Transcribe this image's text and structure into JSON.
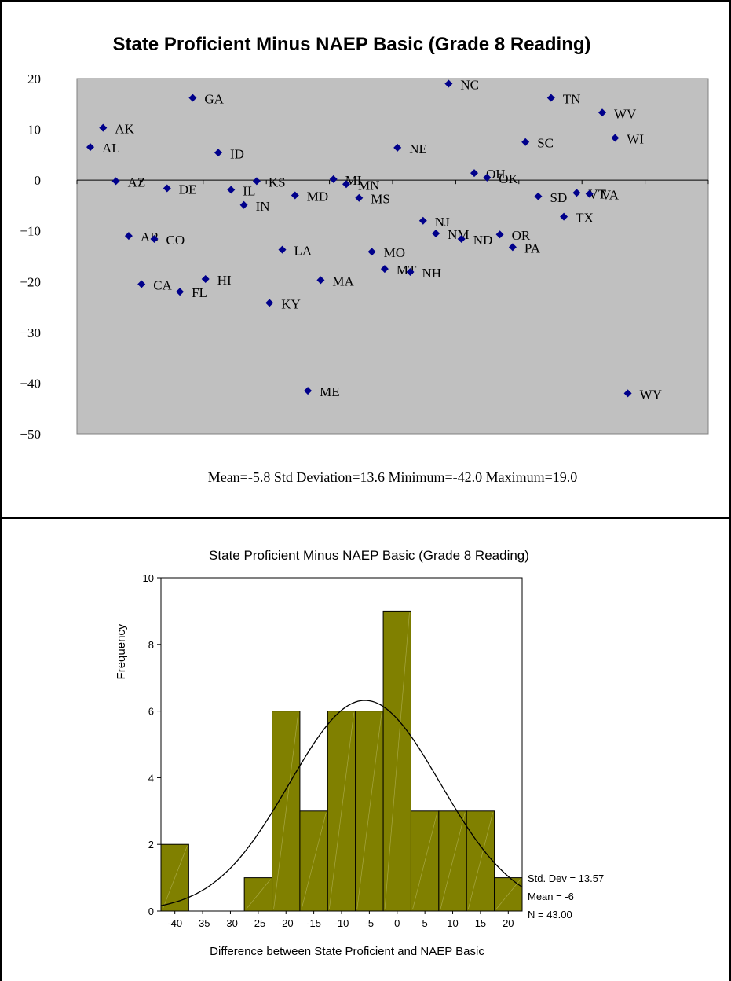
{
  "chart_data": [
    {
      "type": "scatter",
      "title": "State Proficient Minus NAEP Basic (Grade 8 Reading)",
      "ylim": [
        -50,
        20
      ],
      "yticks": [
        20,
        10,
        0,
        -10,
        -20,
        -30,
        -40,
        -50
      ],
      "grid": false,
      "marker_color": "#00008B",
      "plot_background": "#C0C0C0",
      "summary": "Mean=-5.8 Std Deviation=13.6 Minimum=-42.0 Maximum=19.0",
      "points": [
        {
          "label": "AL",
          "x": 1,
          "y": 6.5
        },
        {
          "label": "AK",
          "x": 2,
          "y": 10.3
        },
        {
          "label": "AZ",
          "x": 3,
          "y": -0.2
        },
        {
          "label": "AR",
          "x": 4,
          "y": -11
        },
        {
          "label": "CA",
          "x": 5,
          "y": -20.5
        },
        {
          "label": "CO",
          "x": 6,
          "y": -11.6
        },
        {
          "label": "DE",
          "x": 7,
          "y": -1.6
        },
        {
          "label": "FL",
          "x": 8,
          "y": -22
        },
        {
          "label": "GA",
          "x": 9,
          "y": 16.2
        },
        {
          "label": "HI",
          "x": 10,
          "y": -19.5
        },
        {
          "label": "ID",
          "x": 11,
          "y": 5.4
        },
        {
          "label": "IL",
          "x": 12,
          "y": -1.9
        },
        {
          "label": "IN",
          "x": 13,
          "y": -4.9
        },
        {
          "label": "KS",
          "x": 14,
          "y": -0.2
        },
        {
          "label": "KY",
          "x": 15,
          "y": -24.2
        },
        {
          "label": "LA",
          "x": 16,
          "y": -13.7
        },
        {
          "label": "MD",
          "x": 17,
          "y": -3
        },
        {
          "label": "ME",
          "x": 18,
          "y": -41.5
        },
        {
          "label": "MA",
          "x": 19,
          "y": -19.7
        },
        {
          "label": "MI",
          "x": 20,
          "y": 0.2
        },
        {
          "label": "MN",
          "x": 21,
          "y": -0.8
        },
        {
          "label": "MS",
          "x": 22,
          "y": -3.5
        },
        {
          "label": "MO",
          "x": 23,
          "y": -14.1
        },
        {
          "label": "MT",
          "x": 24,
          "y": -17.5
        },
        {
          "label": "NE",
          "x": 25,
          "y": 6.4
        },
        {
          "label": "NH",
          "x": 26,
          "y": -18.1
        },
        {
          "label": "NJ",
          "x": 27,
          "y": -8
        },
        {
          "label": "NM",
          "x": 28,
          "y": -10.5
        },
        {
          "label": "NC",
          "x": 29,
          "y": 19
        },
        {
          "label": "ND",
          "x": 30,
          "y": -11.6
        },
        {
          "label": "OH",
          "x": 31,
          "y": 1.4
        },
        {
          "label": "OK",
          "x": 32,
          "y": 0.5
        },
        {
          "label": "OR",
          "x": 33,
          "y": -10.7
        },
        {
          "label": "PA",
          "x": 34,
          "y": -13.2
        },
        {
          "label": "SC",
          "x": 35,
          "y": 7.5
        },
        {
          "label": "SD",
          "x": 36,
          "y": -3.2
        },
        {
          "label": "TN",
          "x": 37,
          "y": 16.2
        },
        {
          "label": "TX",
          "x": 38,
          "y": -7.2
        },
        {
          "label": "VT",
          "x": 39,
          "y": -2.5
        },
        {
          "label": "VA",
          "x": 40,
          "y": -2.7
        },
        {
          "label": "WV",
          "x": 41,
          "y": 13.3
        },
        {
          "label": "WI",
          "x": 42,
          "y": 8.3
        },
        {
          "label": "WY",
          "x": 43,
          "y": -42
        }
      ]
    },
    {
      "type": "bar",
      "title": "State Proficient Minus NAEP Basic (Grade 8 Reading)",
      "xlabel": "Difference between State Proficient and NAEP Basic",
      "ylabel": "Frequency",
      "ylim": [
        0,
        10
      ],
      "yticks": [
        0,
        2,
        4,
        6,
        8,
        10
      ],
      "xticks": [
        -40,
        -35,
        -30,
        -25,
        -20,
        -15,
        -10,
        -5,
        0,
        5,
        10,
        15,
        20
      ],
      "bin_width": 5,
      "bar_color": "#808000",
      "bins": [
        {
          "center": -40,
          "count": 2
        },
        {
          "center": -35,
          "count": 0
        },
        {
          "center": -30,
          "count": 0
        },
        {
          "center": -25,
          "count": 1
        },
        {
          "center": -20,
          "count": 6
        },
        {
          "center": -15,
          "count": 3
        },
        {
          "center": -10,
          "count": 6
        },
        {
          "center": -5,
          "count": 6
        },
        {
          "center": 0,
          "count": 9
        },
        {
          "center": 5,
          "count": 3
        },
        {
          "center": 10,
          "count": 3
        },
        {
          "center": 15,
          "count": 3
        },
        {
          "center": 20,
          "count": 1
        }
      ],
      "normal_curve": {
        "mean": -5.8,
        "std": 13.57,
        "n": 43
      },
      "stats": [
        "Std. Dev = 13.57",
        "Mean = -6",
        "N = 43.00"
      ]
    }
  ]
}
